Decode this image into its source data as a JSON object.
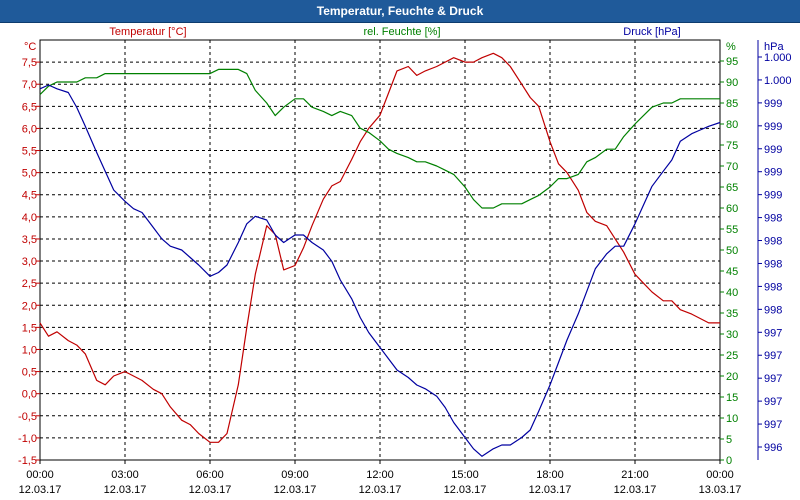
{
  "title": "Temperatur, Feuchte & Druck",
  "chart_data": {
    "type": "line",
    "title": "Temperatur, Feuchte & Druck",
    "x_tick_labels": [
      [
        "00:00",
        "12.03.17"
      ],
      [
        "03:00",
        "12.03.17"
      ],
      [
        "06:00",
        "12.03.17"
      ],
      [
        "09:00",
        "12.03.17"
      ],
      [
        "12:00",
        "12.03.17"
      ],
      [
        "15:00",
        "12.03.17"
      ],
      [
        "18:00",
        "12.03.17"
      ],
      [
        "21:00",
        "12.03.17"
      ],
      [
        "00:00",
        "13.03.17"
      ]
    ],
    "xlim": [
      0,
      24
    ],
    "axes": {
      "temperature": {
        "label": "Temperatur [°C]",
        "unit": "°C",
        "color": "#c00000",
        "ylim": [
          -1.5,
          8.0
        ],
        "ticks": [
          "-1,5",
          "-1,0",
          "-0,5",
          "0,0",
          "0,5",
          "1,0",
          "1,5",
          "2,0",
          "2,5",
          "3,0",
          "3,5",
          "4,0",
          "4,5",
          "5,0",
          "5,5",
          "6,0",
          "6,5",
          "7,0",
          "7,5"
        ]
      },
      "humidity": {
        "label": "rel. Feuchte [%]",
        "unit": "%",
        "color": "#008000",
        "ylim": [
          0,
          100
        ],
        "ticks": [
          "0",
          "5",
          "10",
          "15",
          "20",
          "25",
          "30",
          "35",
          "40",
          "45",
          "50",
          "55",
          "60",
          "65",
          "70",
          "75",
          "80",
          "85",
          "90",
          "95"
        ]
      },
      "pressure": {
        "label": "Druck [hPa]",
        "unit": "hPa",
        "color": "#0000a0",
        "ylim": [
          995.6,
          1001.2
        ],
        "ticks": [
          "996",
          "997",
          "997",
          "997",
          "997",
          "997",
          "998",
          "998",
          "998",
          "998",
          "998",
          "999",
          "999",
          "999",
          "999",
          "999",
          "1.000",
          "1.000"
        ]
      }
    },
    "series": [
      {
        "name": "Temperatur",
        "axis": "temperature",
        "color": "#c00000",
        "x": [
          0,
          0.3,
          0.6,
          1,
          1.3,
          1.6,
          2,
          2.3,
          2.6,
          3,
          3.3,
          3.6,
          4,
          4.3,
          4.6,
          5,
          5.3,
          5.6,
          6,
          6.3,
          6.6,
          7,
          7.3,
          7.6,
          8,
          8.3,
          8.6,
          9,
          9.3,
          9.6,
          10,
          10.3,
          10.6,
          11,
          11.3,
          11.6,
          12,
          12.3,
          12.6,
          13,
          13.3,
          13.6,
          14,
          14.3,
          14.6,
          15,
          15.3,
          15.6,
          16,
          16.3,
          16.6,
          17,
          17.3,
          17.6,
          18,
          18.3,
          18.6,
          19,
          19.3,
          19.6,
          20,
          20.3,
          20.6,
          21,
          21.3,
          21.6,
          22,
          22.3,
          22.6,
          23,
          23.3,
          23.6,
          24
        ],
        "values": [
          1.6,
          1.3,
          1.4,
          1.2,
          1.1,
          0.9,
          0.3,
          0.2,
          0.4,
          0.5,
          0.4,
          0.3,
          0.1,
          0.0,
          -0.3,
          -0.6,
          -0.7,
          -0.9,
          -1.1,
          -1.1,
          -0.9,
          0.2,
          1.5,
          2.7,
          3.8,
          3.6,
          2.8,
          2.9,
          3.3,
          3.8,
          4.4,
          4.7,
          4.8,
          5.3,
          5.7,
          6.0,
          6.3,
          6.8,
          7.3,
          7.4,
          7.2,
          7.3,
          7.4,
          7.5,
          7.6,
          7.5,
          7.5,
          7.6,
          7.7,
          7.6,
          7.4,
          7.0,
          6.7,
          6.5,
          5.7,
          5.2,
          5.0,
          4.6,
          4.1,
          3.9,
          3.8,
          3.5,
          3.2,
          2.7,
          2.5,
          2.3,
          2.1,
          2.1,
          1.9,
          1.8,
          1.7,
          1.6,
          1.6
        ]
      },
      {
        "name": "rel. Feuchte",
        "axis": "humidity",
        "color": "#008000",
        "x": [
          0,
          0.3,
          0.6,
          1,
          1.3,
          1.6,
          2,
          2.3,
          2.6,
          3,
          3.3,
          3.6,
          4,
          4.3,
          4.6,
          5,
          5.3,
          5.6,
          6,
          6.3,
          6.6,
          7,
          7.3,
          7.6,
          8,
          8.3,
          8.6,
          9,
          9.3,
          9.6,
          10,
          10.3,
          10.6,
          11,
          11.3,
          11.6,
          12,
          12.3,
          12.6,
          13,
          13.3,
          13.6,
          14,
          14.3,
          14.6,
          15,
          15.3,
          15.6,
          16,
          16.3,
          16.6,
          17,
          17.3,
          17.6,
          18,
          18.3,
          18.6,
          19,
          19.3,
          19.6,
          20,
          20.3,
          20.6,
          21,
          21.3,
          21.6,
          22,
          22.3,
          22.6,
          23,
          23.3,
          23.6,
          24
        ],
        "values": [
          87,
          89,
          90,
          90,
          90,
          91,
          91,
          92,
          92,
          92,
          92,
          92,
          92,
          92,
          92,
          92,
          92,
          92,
          92,
          93,
          93,
          93,
          92,
          88,
          85,
          82,
          84,
          86,
          86,
          84,
          83,
          82,
          83,
          82,
          79,
          78,
          76,
          74,
          73,
          72,
          71,
          71,
          70,
          69,
          68,
          65,
          62,
          60,
          60,
          61,
          61,
          61,
          62,
          63,
          65,
          67,
          67,
          68,
          71,
          72,
          74,
          74,
          77,
          80,
          82,
          84,
          85,
          85,
          86,
          86,
          86,
          86,
          86
        ]
      },
      {
        "name": "Druck",
        "axis": "pressure",
        "color": "#0000a0",
        "x": [
          0,
          0.3,
          0.6,
          1,
          1.3,
          1.6,
          2,
          2.3,
          2.6,
          3,
          3.3,
          3.6,
          4,
          4.3,
          4.6,
          5,
          5.3,
          5.6,
          6,
          6.3,
          6.6,
          7,
          7.3,
          7.6,
          8,
          8.3,
          8.6,
          9,
          9.3,
          9.6,
          10,
          10.3,
          10.6,
          11,
          11.3,
          11.6,
          12,
          12.3,
          12.6,
          13,
          13.3,
          13.6,
          14,
          14.3,
          14.6,
          15,
          15.3,
          15.6,
          16,
          16.3,
          16.6,
          17,
          17.3,
          17.6,
          18,
          18.3,
          18.6,
          19,
          19.3,
          19.6,
          20,
          20.3,
          20.6,
          21,
          21.3,
          21.6,
          22,
          22.3,
          22.6,
          23,
          23.3,
          23.6,
          24
        ],
        "values": [
          1000.55,
          1000.6,
          1000.55,
          1000.5,
          1000.3,
          1000.05,
          999.7,
          999.45,
          999.2,
          999.05,
          998.95,
          998.9,
          998.7,
          998.55,
          998.45,
          998.4,
          998.3,
          998.2,
          998.05,
          998.1,
          998.2,
          998.5,
          998.75,
          998.85,
          998.8,
          998.6,
          998.5,
          998.6,
          998.6,
          998.5,
          998.4,
          998.25,
          998.0,
          997.75,
          997.5,
          997.3,
          997.1,
          996.95,
          996.8,
          996.7,
          996.6,
          996.55,
          996.45,
          996.3,
          996.1,
          995.9,
          995.75,
          995.65,
          995.75,
          995.8,
          995.8,
          995.9,
          996.0,
          996.25,
          996.6,
          996.9,
          997.2,
          997.55,
          997.85,
          998.15,
          998.35,
          998.45,
          998.45,
          998.75,
          999.0,
          999.25,
          999.45,
          999.6,
          999.85,
          999.95,
          1000.0,
          1000.05,
          1000.1
        ]
      }
    ]
  }
}
